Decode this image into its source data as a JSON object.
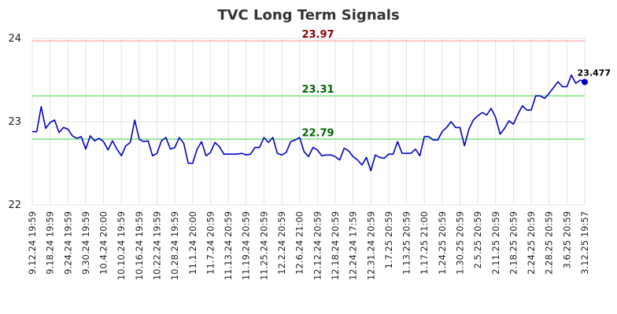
{
  "chart_data": {
    "type": "line",
    "title": "TVC Long Term Signals",
    "xlabel": "",
    "ylabel": "",
    "ylim": [
      22,
      24
    ],
    "yticks": [
      "22",
      "23",
      "24"
    ],
    "grid": true,
    "xticks": [
      "9.12.24 19:59",
      "9.18.24 19:59",
      "9.24.24 19:59",
      "9.30.24 19:59",
      "10.4.24 20:00",
      "10.10.24 19:59",
      "10.16.24 19:59",
      "10.22.24 19:59",
      "10.28.24 19:59",
      "11.1.24 20:00",
      "11.7.24 20:59",
      "11.13.24 20:59",
      "11.19.24 20:59",
      "11.25.24 20:59",
      "12.2.24 20:59",
      "12.6.24 21:00",
      "12.12.24 20:59",
      "12.18.24 20:59",
      "12.24.24 17:59",
      "12.31.24 20:59",
      "1.7.25 20:59",
      "1.13.25 20:59",
      "1.17.25 21:00",
      "1.24.25 20:59",
      "1.30.25 20:59",
      "2.5.25 20:59",
      "2.11.25 20:59",
      "2.18.25 20:59",
      "2.24.25 20:59",
      "2.28.25 20:59",
      "3.6.25 20:59",
      "3.12.25 19:57"
    ],
    "reference_lines": [
      {
        "label": "23.97",
        "value": 23.97,
        "color": "#ffb3b3",
        "label_color": "#8b0000"
      },
      {
        "label": "23.31",
        "value": 23.31,
        "color": "#7ee07e",
        "label_color": "#006400"
      },
      {
        "label": "22.79",
        "value": 22.79,
        "color": "#7ee07e",
        "label_color": "#006400"
      }
    ],
    "series": [
      {
        "color": "#0000cc",
        "values": [
          22.88,
          22.88,
          23.18,
          22.92,
          22.99,
          23.02,
          22.87,
          22.93,
          22.91,
          22.83,
          22.8,
          22.82,
          22.67,
          22.83,
          22.77,
          22.8,
          22.76,
          22.66,
          22.77,
          22.67,
          22.59,
          22.71,
          22.75,
          23.02,
          22.79,
          22.76,
          22.77,
          22.59,
          22.62,
          22.77,
          22.81,
          22.67,
          22.69,
          22.81,
          22.74,
          22.5,
          22.5,
          22.67,
          22.76,
          22.59,
          22.63,
          22.75,
          22.7,
          22.61,
          22.61,
          22.61,
          22.61,
          22.62,
          22.6,
          22.61,
          22.69,
          22.69,
          22.81,
          22.75,
          22.81,
          22.62,
          22.6,
          22.63,
          22.76,
          22.78,
          22.81,
          22.64,
          22.58,
          22.69,
          22.66,
          22.59,
          22.6,
          22.6,
          22.58,
          22.54,
          22.68,
          22.65,
          22.58,
          22.54,
          22.48,
          22.57,
          22.41,
          22.6,
          22.57,
          22.56,
          22.61,
          22.61,
          22.76,
          22.62,
          22.62,
          22.62,
          22.67,
          22.59,
          22.82,
          22.82,
          22.78,
          22.78,
          22.88,
          22.93,
          23.0,
          22.93,
          22.93,
          22.71,
          22.91,
          23.02,
          23.07,
          23.11,
          23.08,
          23.16,
          23.05,
          22.85,
          22.92,
          23.01,
          22.97,
          23.09,
          23.19,
          23.14,
          23.14,
          23.31,
          23.31,
          23.28,
          23.34,
          23.41,
          23.48,
          23.42,
          23.42,
          23.56,
          23.46,
          23.5,
          23.477
        ]
      }
    ],
    "last_value_label": "23.477",
    "last_value": 23.477
  }
}
